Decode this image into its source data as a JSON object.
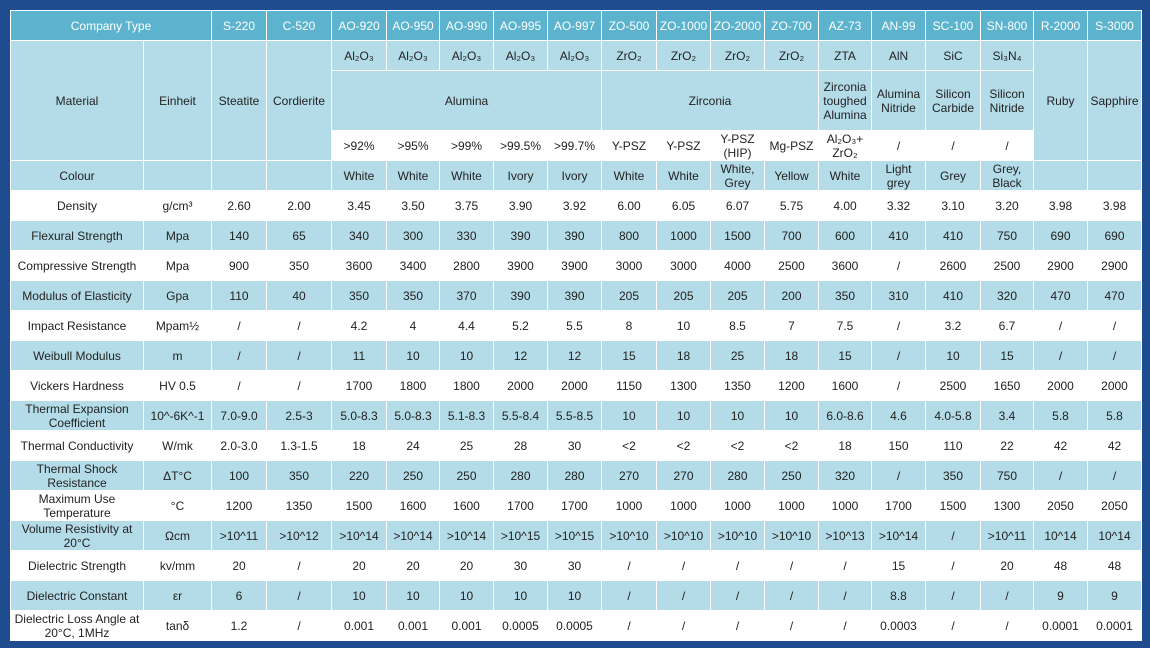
{
  "table": {
    "header": [
      "Company Type",
      "S-220",
      "C-520",
      "AO-920",
      "AO-950",
      "AO-990",
      "AO-995",
      "AO-997",
      "ZO-500",
      "ZO-1000",
      "ZO-2000",
      "ZO-700",
      "AZ-73",
      "AN-99",
      "SC-100",
      "SN-800",
      "R-2000",
      "S-3000"
    ],
    "material": {
      "label": "Material",
      "unit": "Einheit",
      "formulas": [
        "Al₂O₃",
        "Al₂O₃",
        "Al₂O₃",
        "Al₂O₃",
        "Al₂O₃",
        "ZrO₂",
        "ZrO₂",
        "ZrO₂",
        "ZrO₂",
        "ZTA",
        "AlN",
        "SiC",
        "Si₃N₄"
      ],
      "families": [
        "Steatite",
        "Cordierite",
        "Alumina",
        "Zirconia",
        "Zirconia toughed Alumina",
        "Alumina Nitride",
        "Silicon Carbide",
        "Silicon Nitride",
        "Ruby",
        "Sapphire"
      ],
      "grades": [
        ">92%",
        ">95%",
        ">99%",
        ">99.5%",
        ">99.7%",
        "Y-PSZ",
        "Y-PSZ",
        "Y-PSZ (HIP)",
        "Mg-PSZ",
        "Al₂O₃+ ZrO₂",
        "/",
        "/",
        "/"
      ]
    },
    "colour": {
      "label": "Colour",
      "values": [
        null,
        null,
        null,
        "White",
        "White",
        "White",
        "Ivory",
        "Ivory",
        "White",
        "White",
        "White, Grey",
        "Yellow",
        "White",
        "Light grey",
        "Grey",
        "Grey, Black",
        null,
        null
      ]
    },
    "rows": [
      {
        "label": "Density",
        "unit": "g/cm³",
        "values": [
          "2.60",
          "2.00",
          "3.45",
          "3.50",
          "3.75",
          "3.90",
          "3.92",
          "6.00",
          "6.05",
          "6.07",
          "5.75",
          "4.00",
          "3.32",
          "3.10",
          "3.20",
          "3.98",
          "3.98"
        ]
      },
      {
        "label": "Flexural Strength",
        "unit": "Mpa",
        "values": [
          "140",
          "65",
          "340",
          "300",
          "330",
          "390",
          "390",
          "800",
          "1000",
          "1500",
          "700",
          "600",
          "410",
          "410",
          "750",
          "690",
          "690"
        ]
      },
      {
        "label": "Compressive Strength",
        "unit": "Mpa",
        "values": [
          "900",
          "350",
          "3600",
          "3400",
          "2800",
          "3900",
          "3900",
          "3000",
          "3000",
          "4000",
          "2500",
          "3600",
          "/",
          "2600",
          "2500",
          "2900",
          "2900"
        ]
      },
      {
        "label": "Modulus of Elasticity",
        "unit": "Gpa",
        "values": [
          "110",
          "40",
          "350",
          "350",
          "370",
          "390",
          "390",
          "205",
          "205",
          "205",
          "200",
          "350",
          "310",
          "410",
          "320",
          "470",
          "470"
        ]
      },
      {
        "label": "Impact Resistance",
        "unit": "Mpam½",
        "values": [
          "/",
          "/",
          "4.2",
          "4",
          "4.4",
          "5.2",
          "5.5",
          "8",
          "10",
          "8.5",
          "7",
          "7.5",
          "/",
          "3.2",
          "6.7",
          "/",
          "/"
        ]
      },
      {
        "label": "Weibull Modulus",
        "unit": "m",
        "values": [
          "/",
          "/",
          "11",
          "10",
          "10",
          "12",
          "12",
          "15",
          "18",
          "25",
          "18",
          "15",
          "/",
          "10",
          "15",
          "/",
          "/"
        ]
      },
      {
        "label": "Vickers Hardness",
        "unit": "HV 0.5",
        "values": [
          "/",
          "/",
          "1700",
          "1800",
          "1800",
          "2000",
          "2000",
          "1150",
          "1300",
          "1350",
          "1200",
          "1600",
          "/",
          "2500",
          "1650",
          "2000",
          "2000"
        ]
      },
      {
        "label": "Thermal Expansion Coefficient",
        "unit": "10^-6K^-1",
        "values": [
          "7.0-9.0",
          "2.5-3",
          "5.0-8.3",
          "5.0-8.3",
          "5.1-8.3",
          "5.5-8.4",
          "5.5-8.5",
          "10",
          "10",
          "10",
          "10",
          "6.0-8.6",
          "4.6",
          "4.0-5.8",
          "3.4",
          "5.8",
          "5.8"
        ]
      },
      {
        "label": "Thermal Conductivity",
        "unit": "W/mk",
        "values": [
          "2.0-3.0",
          "1.3-1.5",
          "18",
          "24",
          "25",
          "28",
          "30",
          "<2",
          "<2",
          "<2",
          "<2",
          "18",
          "150",
          "110",
          "22",
          "42",
          "42"
        ]
      },
      {
        "label": "Thermal Shock Resistance",
        "unit": "ΔT°C",
        "values": [
          "100",
          "350",
          "220",
          "250",
          "250",
          "280",
          "280",
          "270",
          "270",
          "280",
          "250",
          "320",
          "/",
          "350",
          "750",
          "/",
          "/"
        ]
      },
      {
        "label": "Maximum Use Temperature",
        "unit": "°C",
        "values": [
          "1200",
          "1350",
          "1500",
          "1600",
          "1600",
          "1700",
          "1700",
          "1000",
          "1000",
          "1000",
          "1000",
          "1000",
          "1700",
          "1500",
          "1300",
          "2050",
          "2050"
        ]
      },
      {
        "label": "Volume Resistivity at 20°C",
        "unit": "Ωcm",
        "values": [
          ">10^11",
          ">10^12",
          ">10^14",
          ">10^14",
          ">10^14",
          ">10^15",
          ">10^15",
          ">10^10",
          ">10^10",
          ">10^10",
          ">10^10",
          ">10^13",
          ">10^14",
          "/",
          ">10^11",
          "10^14",
          "10^14"
        ]
      },
      {
        "label": "Dielectric Strength",
        "unit": "kv/mm",
        "values": [
          "20",
          "/",
          "20",
          "20",
          "20",
          "30",
          "30",
          "/",
          "/",
          "/",
          "/",
          "/",
          "15",
          "/",
          "20",
          "48",
          "48"
        ]
      },
      {
        "label": "Dielectric Constant",
        "unit": "εr",
        "values": [
          "6",
          "/",
          "10",
          "10",
          "10",
          "10",
          "10",
          "/",
          "/",
          "/",
          "/",
          "/",
          "8.8",
          "/",
          "/",
          "9",
          "9"
        ]
      },
      {
        "label": "Dielectric Loss Angle at 20°C, 1MHz",
        "unit": "tanδ",
        "values": [
          "1.2",
          "/",
          "0.001",
          "0.001",
          "0.001",
          "0.0005",
          "0.0005",
          "/",
          "/",
          "/",
          "/",
          "/",
          "0.0003",
          "/",
          "/",
          "0.0001",
          "0.0001"
        ]
      }
    ]
  }
}
